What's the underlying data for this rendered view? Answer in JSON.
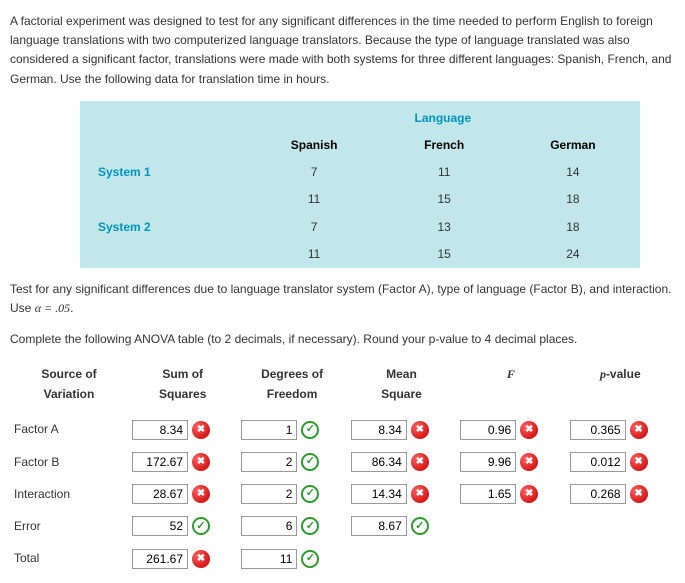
{
  "intro": {
    "p1": "A factorial experiment was designed to test for any significant differences in the time needed to perform English to foreign language translations with two computerized language translators. Because the type of language translated was also considered a significant factor, translations were made with both systems for three different languages: Spanish, French, and German. Use the following data for translation time in hours.",
    "p2_a": "Test for any significant differences due to language translator system (Factor A), type of language (Factor B), and interaction. Use ",
    "p2_alpha": "α = .05",
    "p2_b": ".",
    "p3": "Complete the following ANOVA table (to 2 decimals, if necessary). Round your p-value to 4 decimal places."
  },
  "data_table": {
    "group_header": "Language",
    "col_headers": [
      "Spanish",
      "French",
      "German"
    ],
    "row_labels": [
      "System 1",
      "System 2"
    ],
    "rows": [
      [
        "7",
        "11",
        "14"
      ],
      [
        "11",
        "15",
        "18"
      ],
      [
        "7",
        "13",
        "18"
      ],
      [
        "11",
        "15",
        "24"
      ]
    ]
  },
  "anova": {
    "headers": {
      "src": "Source of Variation",
      "ss": "Sum of Squares",
      "df": "Degrees of Freedom",
      "ms": "Mean Square",
      "f": "F",
      "p": "p-value"
    },
    "rows": [
      {
        "label": "Factor A",
        "ss": {
          "v": "8.34",
          "ok": false
        },
        "df": {
          "v": "1",
          "ok": true
        },
        "ms": {
          "v": "8.34",
          "ok": false
        },
        "f": {
          "v": "0.96",
          "ok": false
        },
        "p": {
          "v": "0.365",
          "ok": false
        }
      },
      {
        "label": "Factor B",
        "ss": {
          "v": "172.67",
          "ok": false
        },
        "df": {
          "v": "2",
          "ok": true
        },
        "ms": {
          "v": "86.34",
          "ok": false
        },
        "f": {
          "v": "9.96",
          "ok": false
        },
        "p": {
          "v": "0.012",
          "ok": false
        }
      },
      {
        "label": "Interaction",
        "ss": {
          "v": "28.67",
          "ok": false
        },
        "df": {
          "v": "2",
          "ok": true
        },
        "ms": {
          "v": "14.34",
          "ok": false
        },
        "f": {
          "v": "1.65",
          "ok": false
        },
        "p": {
          "v": "0.268",
          "ok": false
        }
      },
      {
        "label": "Error",
        "ss": {
          "v": "52",
          "ok": true
        },
        "df": {
          "v": "6",
          "ok": true
        },
        "ms": {
          "v": "8.67",
          "ok": true
        },
        "f": null,
        "p": null
      },
      {
        "label": "Total",
        "ss": {
          "v": "261.67",
          "ok": false
        },
        "df": {
          "v": "11",
          "ok": true
        },
        "ms": null,
        "f": null,
        "p": null
      }
    ]
  },
  "style": {
    "table_bg": "#c1e7eb",
    "accent": "#0093bd",
    "wrong": "#c40000",
    "right": "#2e9b2e",
    "body_font_size": 12
  }
}
